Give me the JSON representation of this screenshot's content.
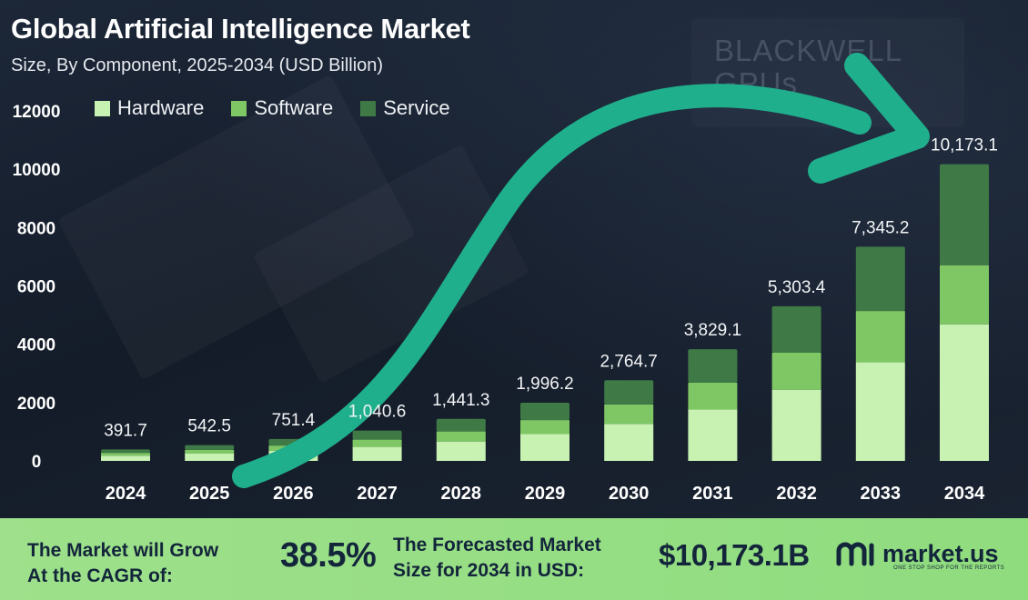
{
  "title": "Global Artificial Intelligence Market",
  "subtitle": "Size, By Component, 2025-2034 (USD Billion)",
  "background_text": [
    "BLACKWELL",
    "GPUs"
  ],
  "colors": {
    "hardware": "#c8f2b2",
    "software": "#7fc765",
    "service": "#3f7a46",
    "arrow": "#1faf8c",
    "footer_bg": "#9ee08b",
    "footer_text": "#13253b"
  },
  "chart_data": {
    "type": "bar",
    "stacked": true,
    "title": "Global Artificial Intelligence Market",
    "subtitle": "Size, By Component, 2025-2034 (USD Billion)",
    "categories": [
      "2024",
      "2025",
      "2026",
      "2027",
      "2028",
      "2029",
      "2030",
      "2031",
      "2032",
      "2033",
      "2034"
    ],
    "totals": [
      "391.7",
      "542.5",
      "751.4",
      "1,040.6",
      "1,441.3",
      "1,996.2",
      "2,764.7",
      "3,829.1",
      "5,303.4",
      "7,345.2",
      "10,173.1"
    ],
    "series": [
      {
        "name": "Hardware",
        "values": [
          180,
          250,
          345,
          480,
          665,
          920,
          1270,
          1760,
          2440,
          3380,
          4680
        ]
      },
      {
        "name": "Software",
        "values": [
          95,
          130,
          180,
          250,
          345,
          480,
          665,
          920,
          1270,
          1760,
          2030
        ]
      },
      {
        "name": "Service",
        "values": [
          116.7,
          162.5,
          226.4,
          310.6,
          431.3,
          596.2,
          829.7,
          1149.1,
          1593.4,
          2205.2,
          3463.1
        ]
      }
    ],
    "y_ticks": [
      "0",
      "2000",
      "4000",
      "6000",
      "8000",
      "10000",
      "12000"
    ],
    "ylim": [
      0,
      12000
    ],
    "xlabel": "",
    "ylabel": "",
    "grid": false,
    "legend": "top-left"
  },
  "footer": {
    "grow_line1": "The Market will Grow",
    "grow_line2": "At the CAGR of:",
    "cagr": "38.5%",
    "forecast_line1": "The Forecasted Market",
    "forecast_line2": "Size for 2034 in USD:",
    "amount": "$10,173.1B",
    "brand_name": "market.us",
    "brand_tagline": "ONE STOP SHOP FOR THE REPORTS"
  }
}
